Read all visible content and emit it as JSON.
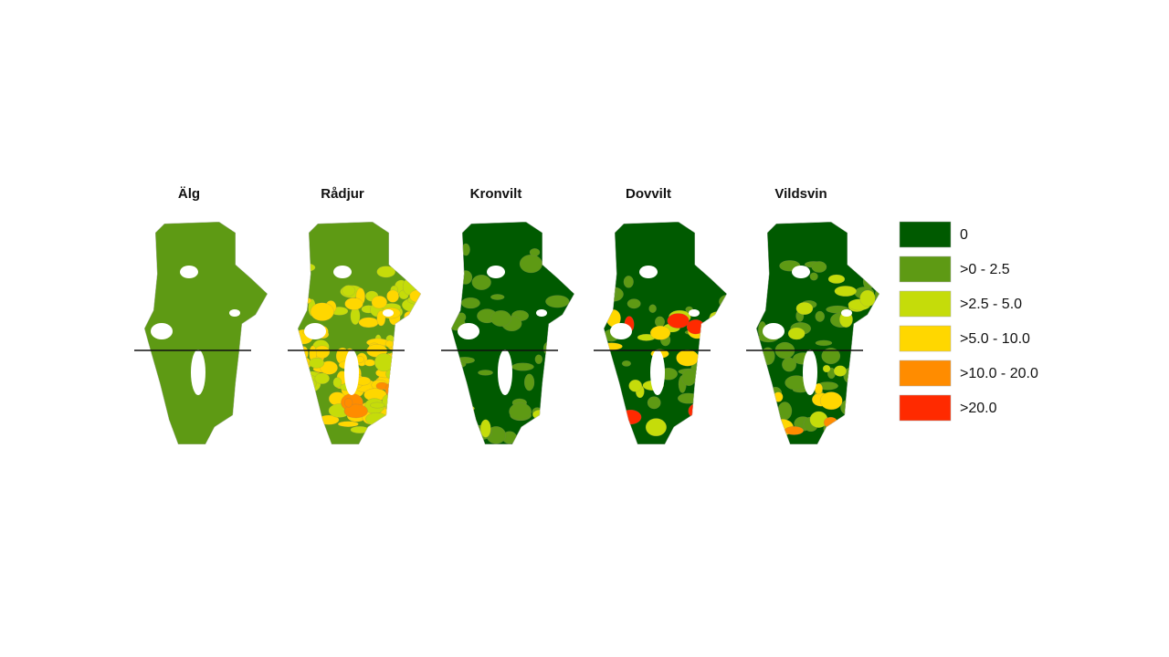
{
  "maps": [
    {
      "title": "Älg"
    },
    {
      "title": "Rådjur"
    },
    {
      "title": "Kronvilt"
    },
    {
      "title": "Dovvilt"
    },
    {
      "title": "Vildsvin"
    }
  ],
  "legend": [
    {
      "label": "0",
      "color": "#005a00"
    },
    {
      "label": ">0 - 2.5",
      "color": "#5e9a14"
    },
    {
      "label": ">2.5 - 5.0",
      "color": "#c5dc0a"
    },
    {
      "label": ">5.0 - 10.0",
      "color": "#ffd700"
    },
    {
      "label": ">10.0 - 20.0",
      "color": "#ff8c00"
    },
    {
      "label": ">20.0",
      "color": "#ff2a00"
    }
  ]
}
